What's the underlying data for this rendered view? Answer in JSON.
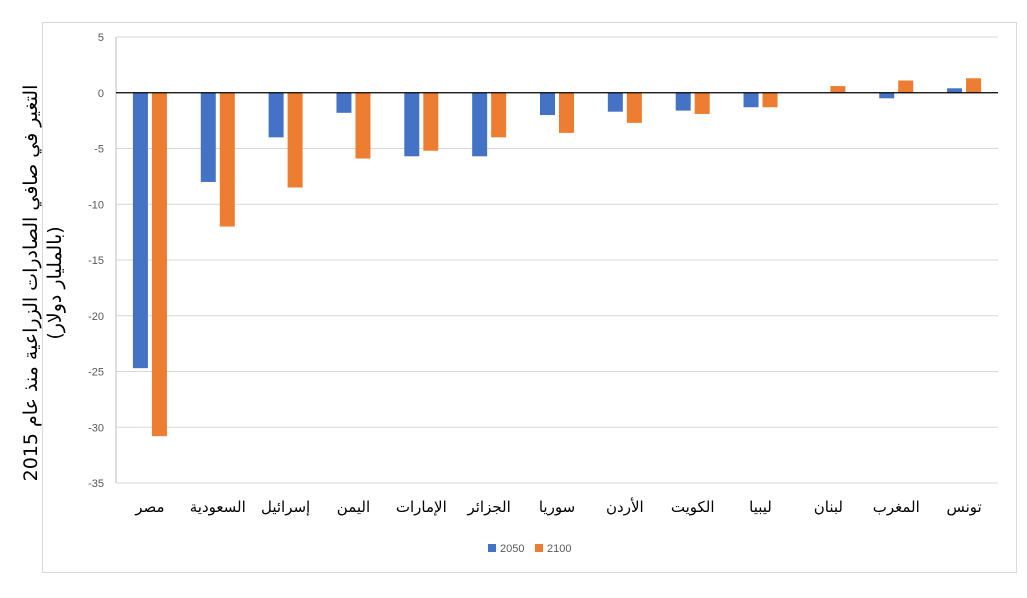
{
  "chart_data": {
    "type": "bar",
    "categories": [
      "مصر",
      "السعودية",
      "إسرائيل",
      "اليمن",
      "الإمارات",
      "الجزائر",
      "سوريا",
      "الأردن",
      "الكويت",
      "ليبيا",
      "لبنان",
      "المغرب",
      "تونس"
    ],
    "series": [
      {
        "name": "2050",
        "color": "#4472c4",
        "values": [
          -24.7,
          -8.0,
          -4.0,
          -1.8,
          -5.7,
          -5.7,
          -2.0,
          -1.7,
          -1.6,
          -1.3,
          0.0,
          -0.5,
          0.4
        ]
      },
      {
        "name": "2100",
        "color": "#ed7d31",
        "values": [
          -30.8,
          -12.0,
          -8.5,
          -5.9,
          -5.2,
          -4.0,
          -3.6,
          -2.7,
          -1.9,
          -1.3,
          0.6,
          1.1,
          1.3
        ]
      }
    ],
    "ylabel": "التغير في صافي الصادرات الزراعية منذ عام 2015 (بالمليار دولار)",
    "ylabel_lines": [
      "التغير في صافي الصادرات الزراعية منذ عام 2015",
      "(بالمليار دولار)"
    ],
    "yticks": [
      5,
      0,
      -5,
      -10,
      -15,
      -20,
      -25,
      -30,
      -35
    ],
    "ytick_labels": [
      "5",
      "0",
      "-5",
      "-10",
      "-15",
      "-20",
      "-25",
      "-30",
      "-35"
    ],
    "ylim": [
      -35,
      5
    ],
    "grid": true,
    "legend_position": "bottom"
  }
}
